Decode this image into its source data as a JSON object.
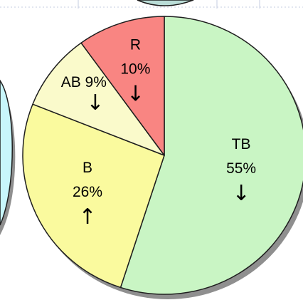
{
  "chart_data": {
    "type": "pie",
    "slices": [
      {
        "label": "TB",
        "value": 55,
        "display": "55%",
        "arrow": "↓",
        "color": "#c9f5c4"
      },
      {
        "label": "B",
        "value": 26,
        "display": "26%",
        "arrow": "↑",
        "color": "#fafa9e"
      },
      {
        "label": "AB",
        "value": 9,
        "display": "9%",
        "arrow": "↓",
        "color": "#fafacb"
      },
      {
        "label": "R",
        "value": 10,
        "display": "10%",
        "arrow": "↓",
        "color": "#f98582"
      }
    ]
  },
  "colors": {
    "outline": "#1e1e1e",
    "shadow": "#8f8f8f",
    "neighbor_fill": "#c8f6fb",
    "neighbor_top_fill": "#b9dcd6",
    "grid": "#c6cde2"
  }
}
